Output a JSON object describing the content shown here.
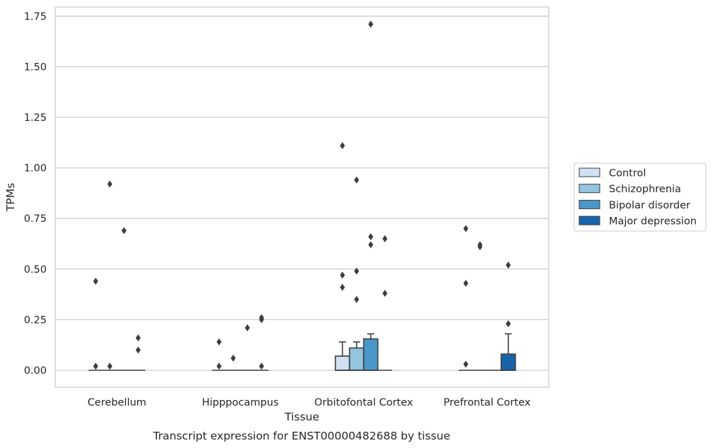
{
  "caption": "Transcript expression for ENST00000482688 by tissue",
  "chart_data": {
    "type": "box",
    "xlabel": "Tissue",
    "ylabel": "TPMs",
    "ylim": [
      -0.085,
      1.8
    ],
    "yticks": [
      "0.00",
      "0.25",
      "0.50",
      "0.75",
      "1.00",
      "1.25",
      "1.50",
      "1.75"
    ],
    "grid": "horizontal",
    "legend_position": "right",
    "categories": [
      "Cerebellum",
      "Hipppocampus",
      "Orbitofontal Cortex",
      "Prefrontal Cortex"
    ],
    "series": [
      {
        "name": "Control",
        "color": "#d0e1f2",
        "boxes": [
          {
            "q1": 0,
            "median": 0,
            "q3": 0,
            "whisker_low": 0,
            "whisker_high": 0,
            "outliers": [
              0.44,
              0.02
            ]
          },
          {
            "q1": 0,
            "median": 0,
            "q3": 0,
            "whisker_low": 0,
            "whisker_high": 0,
            "outliers": [
              0.14,
              0.02
            ]
          },
          {
            "q1": 0,
            "median": 0,
            "q3": 0.07,
            "whisker_low": 0,
            "whisker_high": 0.14,
            "outliers": [
              1.11,
              0.47,
              0.41
            ]
          },
          {
            "q1": 0,
            "median": 0,
            "q3": 0,
            "whisker_low": 0,
            "whisker_high": 0,
            "outliers": [
              0.7,
              0.43,
              0.03
            ]
          }
        ]
      },
      {
        "name": "Schizophrenia",
        "color": "#94c4df",
        "boxes": [
          {
            "q1": 0,
            "median": 0,
            "q3": 0,
            "whisker_low": 0,
            "whisker_high": 0,
            "outliers": [
              0.92,
              0.02
            ]
          },
          {
            "q1": 0,
            "median": 0,
            "q3": 0,
            "whisker_low": 0,
            "whisker_high": 0,
            "outliers": [
              0.06
            ]
          },
          {
            "q1": 0,
            "median": 0,
            "q3": 0.11,
            "whisker_low": 0,
            "whisker_high": 0.14,
            "outliers": [
              0.94,
              0.49,
              0.35
            ]
          },
          {
            "q1": 0,
            "median": 0,
            "q3": 0,
            "whisker_low": 0,
            "whisker_high": 0,
            "outliers": [
              0.62,
              0.61
            ]
          }
        ]
      },
      {
        "name": "Bipolar disorder",
        "color": "#4a98c9",
        "boxes": [
          {
            "q1": 0,
            "median": 0,
            "q3": 0,
            "whisker_low": 0,
            "whisker_high": 0,
            "outliers": [
              0.69
            ]
          },
          {
            "q1": 0,
            "median": 0,
            "q3": 0,
            "whisker_low": 0,
            "whisker_high": 0,
            "outliers": [
              0.21
            ]
          },
          {
            "q1": 0,
            "median": 0,
            "q3": 0.155,
            "whisker_low": 0,
            "whisker_high": 0.18,
            "outliers": [
              1.71,
              0.66,
              0.62
            ]
          },
          {
            "q1": 0,
            "median": 0,
            "q3": 0,
            "whisker_low": 0,
            "whisker_high": 0,
            "outliers": []
          }
        ]
      },
      {
        "name": "Major depression",
        "color": "#1764ab",
        "boxes": [
          {
            "q1": 0,
            "median": 0,
            "q3": 0,
            "whisker_low": 0,
            "whisker_high": 0,
            "outliers": [
              0.16,
              0.1
            ]
          },
          {
            "q1": 0,
            "median": 0,
            "q3": 0,
            "whisker_low": 0,
            "whisker_high": 0,
            "outliers": [
              0.26,
              0.25,
              0.02
            ]
          },
          {
            "q1": 0,
            "median": 0,
            "q3": 0,
            "whisker_low": 0,
            "whisker_high": 0,
            "outliers": [
              0.65,
              0.38
            ]
          },
          {
            "q1": 0,
            "median": 0,
            "q3": 0.08,
            "whisker_low": 0,
            "whisker_high": 0.18,
            "outliers": [
              0.52,
              0.23
            ]
          }
        ]
      }
    ]
  }
}
